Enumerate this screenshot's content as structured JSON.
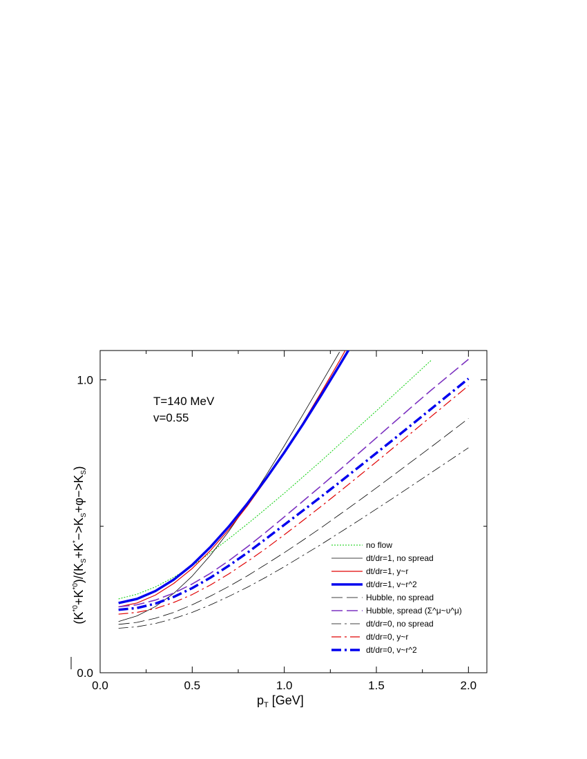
{
  "chart_data": {
    "type": "line",
    "xlabel": "p_T [GeV]",
    "ylabel": "(K*0+K*0)/(K_S+K*->K_S+φ->K_S)",
    "xlim": [
      0.0,
      2.1
    ],
    "ylim": [
      0.0,
      1.1
    ],
    "x_ticks": [
      "0.0",
      "0.5",
      "1.0",
      "1.5",
      "2.0"
    ],
    "y_ticks": [
      "0.0",
      "1.0"
    ],
    "grid": false,
    "legend_position": "bottom-right",
    "annotations": [
      "T=140 MeV",
      "v=0.55"
    ],
    "x": [
      0.1,
      0.2,
      0.3,
      0.4,
      0.5,
      0.6,
      0.7,
      0.8,
      0.9,
      1.0,
      1.1,
      1.2,
      1.3,
      1.4,
      1.5,
      1.6,
      1.7,
      1.8,
      1.9,
      2.0
    ],
    "series": [
      {
        "name": "no flow",
        "color": "#00cc00",
        "dash": "dotted",
        "width": 1,
        "values": [
          0.252,
          0.268,
          0.293,
          0.326,
          0.365,
          0.41,
          0.458,
          0.508,
          0.56,
          0.613,
          0.668,
          0.723,
          0.78,
          0.837,
          0.894,
          0.952,
          1.01,
          1.068,
          null,
          null
        ]
      },
      {
        "name": "dt/dr=1, no spread",
        "color": "#000000",
        "dash": "solid",
        "width": 0.8,
        "values": [
          0.175,
          0.194,
          0.226,
          0.271,
          0.33,
          0.402,
          0.484,
          0.575,
          0.673,
          0.775,
          0.88,
          0.987,
          1.095,
          null,
          null,
          null,
          null,
          null,
          null,
          null
        ]
      },
      {
        "name": "dt/dr=1, y~r",
        "color": "#e00000",
        "dash": "solid",
        "width": 1.2,
        "values": [
          0.225,
          0.238,
          0.265,
          0.305,
          0.356,
          0.418,
          0.49,
          0.57,
          0.658,
          0.752,
          0.852,
          0.957,
          1.065,
          1.178,
          null,
          null,
          null,
          null,
          null,
          null
        ]
      },
      {
        "name": "dt/dr=1, v~r^2",
        "color": "#0000ee",
        "dash": "solid",
        "width": 3.5,
        "values": [
          0.238,
          0.252,
          0.279,
          0.318,
          0.368,
          0.43,
          0.5,
          0.578,
          0.662,
          0.752,
          0.847,
          0.947,
          1.05,
          1.155,
          null,
          null,
          null,
          null,
          null,
          null
        ]
      },
      {
        "name": "Hubble, no spread",
        "color": "#000000",
        "dash": "longdash",
        "width": 0.8,
        "values": [
          0.165,
          0.172,
          0.186,
          0.206,
          0.232,
          0.262,
          0.295,
          0.331,
          0.37,
          0.41,
          0.452,
          0.495,
          0.54,
          0.585,
          0.631,
          0.678,
          0.725,
          0.772,
          0.82,
          0.868
        ]
      },
      {
        "name": "Hubble, spread (Σ^μ~υ^μ)",
        "color": "#7b30c0",
        "dash": "longdash",
        "width": 1.6,
        "values": [
          0.225,
          0.232,
          0.248,
          0.272,
          0.303,
          0.34,
          0.383,
          0.43,
          0.48,
          0.532,
          0.585,
          0.638,
          0.692,
          0.747,
          0.802,
          0.857,
          0.912,
          0.966,
          1.018,
          1.07
        ]
      },
      {
        "name": "dt/dr=0, no spread",
        "color": "#000000",
        "dash": "dashdot",
        "width": 0.8,
        "values": [
          0.152,
          0.157,
          0.168,
          0.185,
          0.206,
          0.232,
          0.261,
          0.292,
          0.326,
          0.362,
          0.4,
          0.438,
          0.478,
          0.518,
          0.559,
          0.6,
          0.642,
          0.684,
          0.726,
          0.768
        ]
      },
      {
        "name": "dt/dr=0, y~r",
        "color": "#e00000",
        "dash": "dashdot",
        "width": 1.2,
        "values": [
          0.2,
          0.206,
          0.219,
          0.24,
          0.267,
          0.3,
          0.338,
          0.38,
          0.424,
          0.471,
          0.519,
          0.568,
          0.618,
          0.669,
          0.72,
          0.772,
          0.824,
          0.876,
          0.928,
          0.98
        ]
      },
      {
        "name": "dt/dr=0, v~r^2",
        "color": "#0000ee",
        "dash": "dashdot",
        "width": 3.5,
        "values": [
          0.215,
          0.221,
          0.236,
          0.259,
          0.289,
          0.325,
          0.366,
          0.41,
          0.457,
          0.505,
          0.553,
          0.601,
          0.65,
          0.7,
          0.75,
          0.8,
          0.851,
          0.902,
          0.953,
          1.004
        ]
      }
    ]
  },
  "legend_labels": [
    "no flow",
    "dt/dr=1, no spread",
    "dt/dr=1, y~r",
    "dt/dr=1, v~r^2",
    "Hubble, no spread",
    "Hubble, spread (Σ^μ~υ^μ)",
    "dt/dr=0, no spread",
    "dt/dr=0, y~r",
    "dt/dr=0, v~r^2"
  ]
}
